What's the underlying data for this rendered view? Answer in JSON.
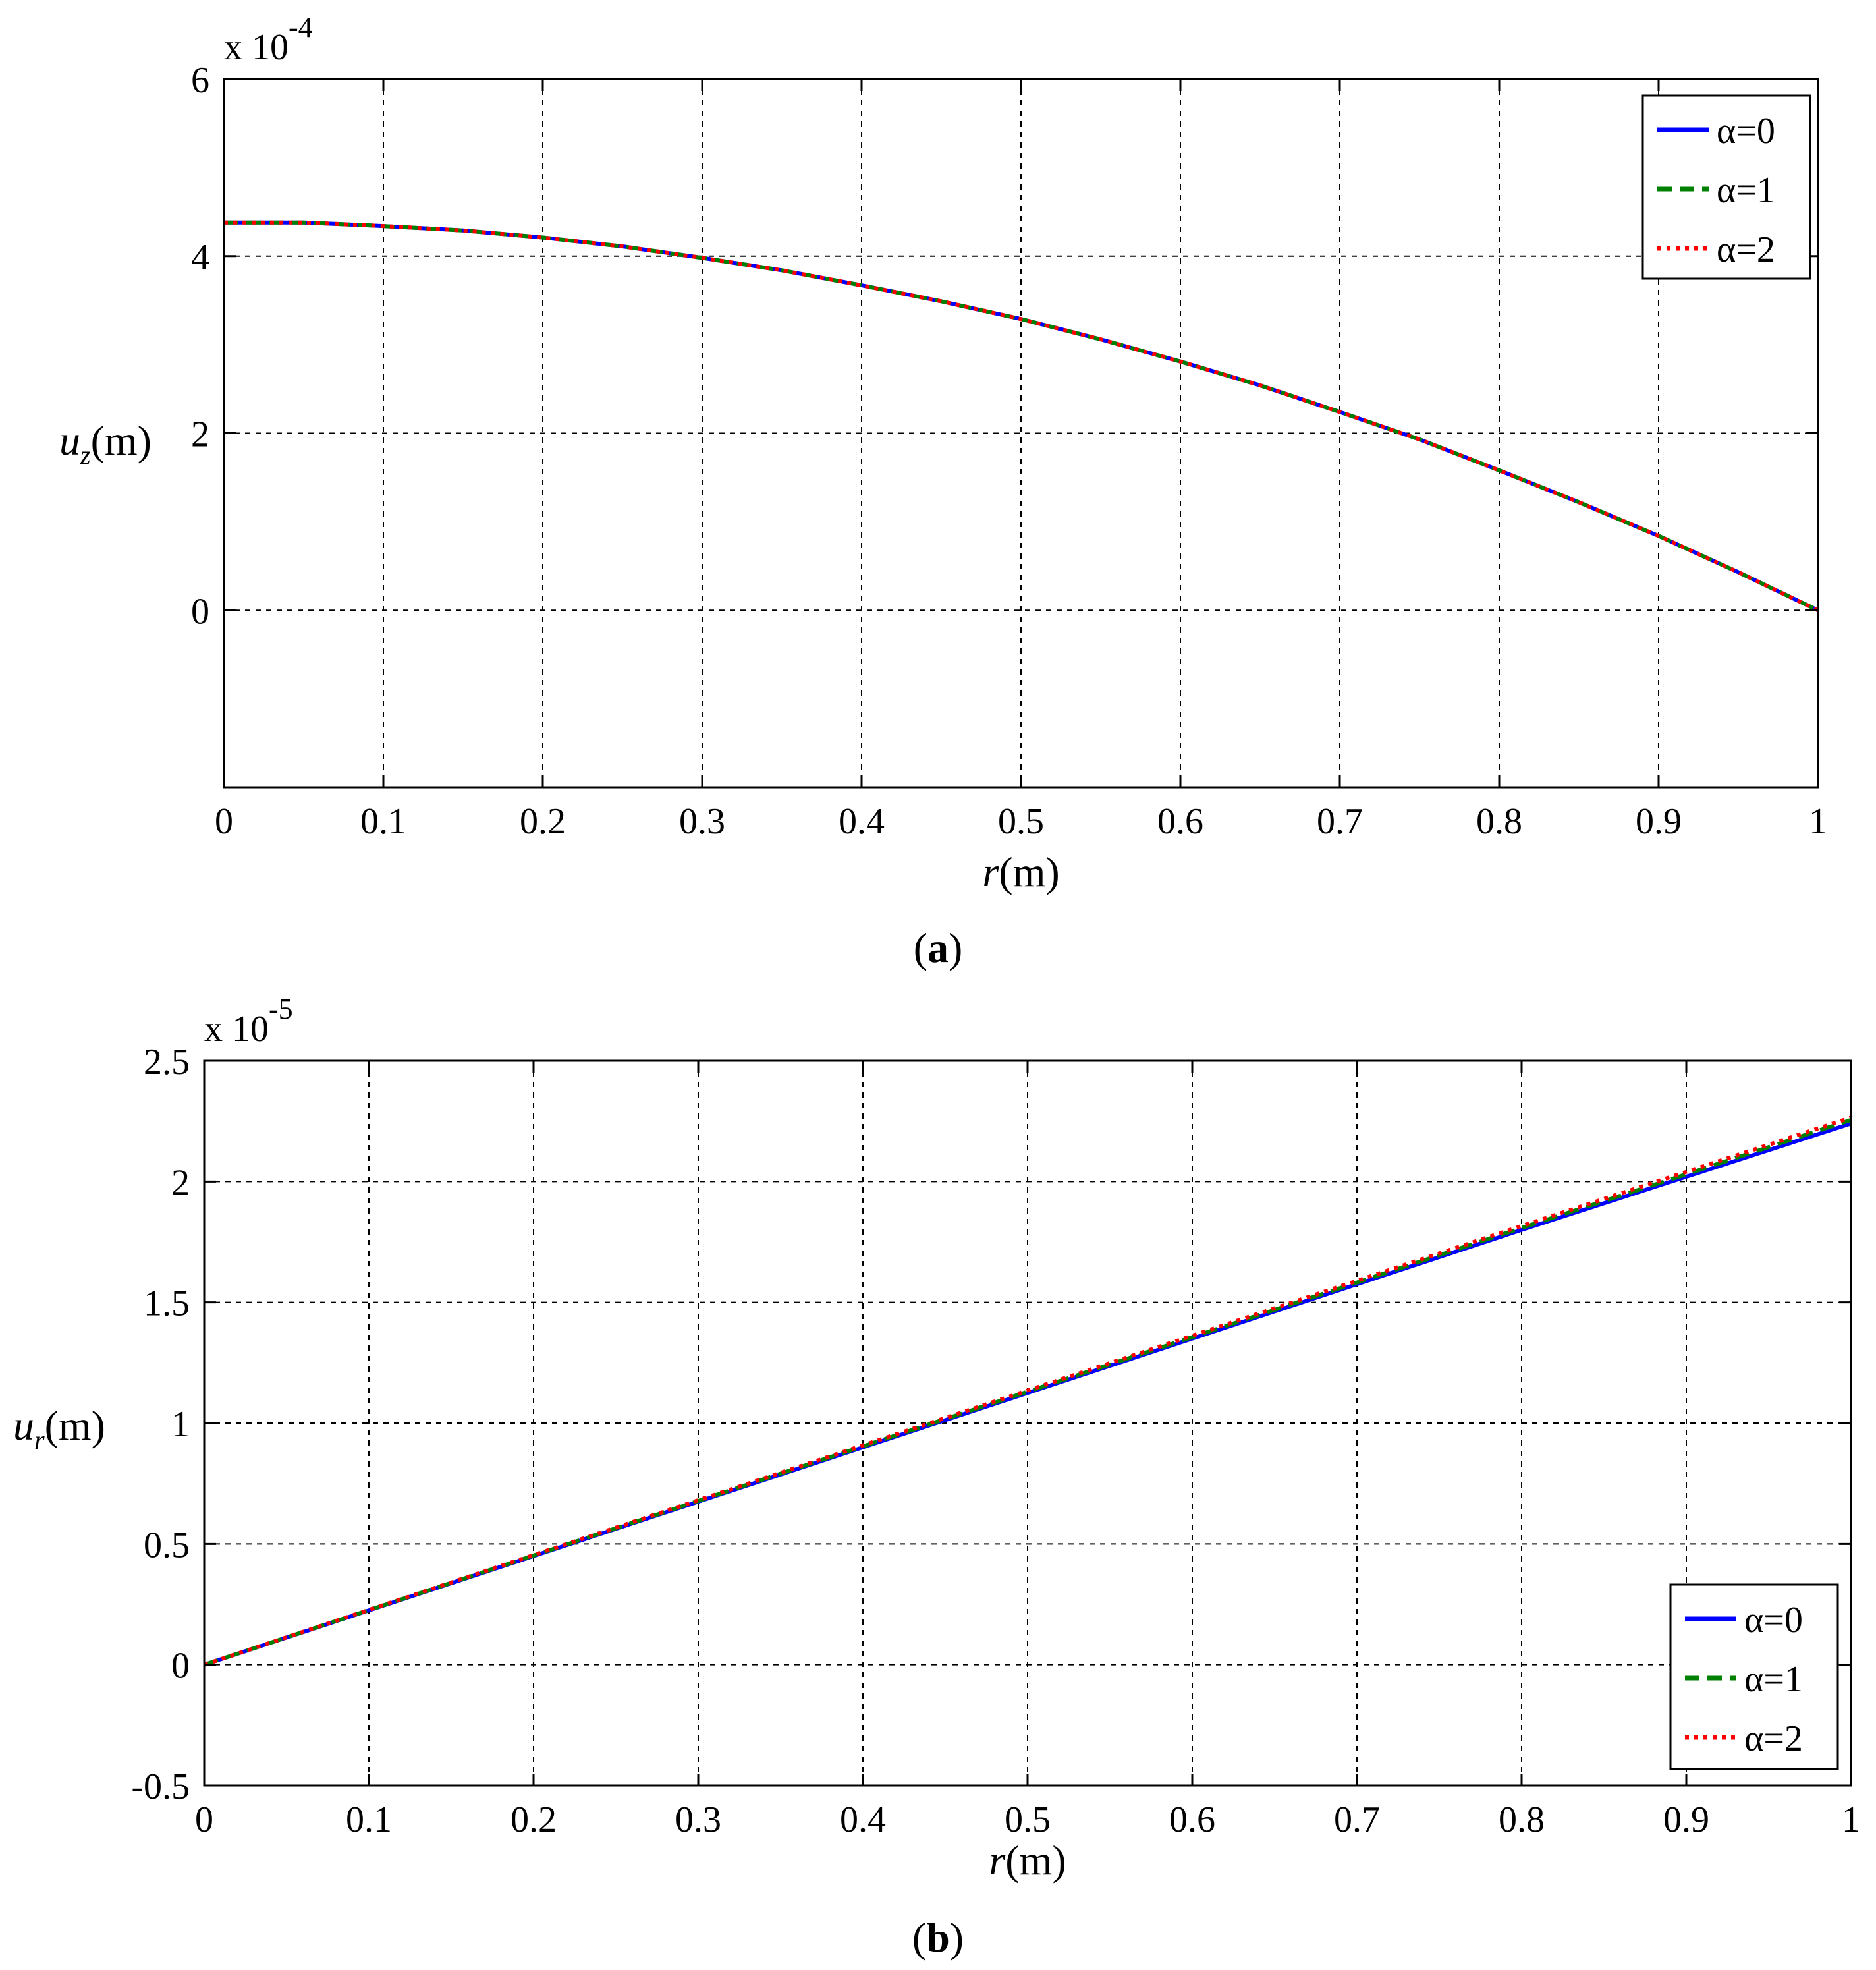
{
  "chart_data": [
    {
      "type": "line",
      "panel_label": "a",
      "xlabel_symbol": "r",
      "xlabel_unit": "(m)",
      "ylabel_symbol": "u",
      "ylabel_subscript": "z",
      "ylabel_unit": "(m)",
      "y_multiplier_prefix": "x 10",
      "y_multiplier_exponent": "-4",
      "xlim": [
        0,
        1
      ],
      "ylim": [
        -2,
        6
      ],
      "x_ticks": [
        0,
        0.1,
        0.2,
        0.3,
        0.4,
        0.5,
        0.6,
        0.7,
        0.8,
        0.9,
        1
      ],
      "x_tick_labels": [
        "0",
        "0.1",
        "0.2",
        "0.3",
        "0.4",
        "0.5",
        "0.6",
        "0.7",
        "0.8",
        "0.9",
        "1"
      ],
      "y_ticks": [
        0,
        2,
        4,
        6
      ],
      "y_tick_labels": [
        "0",
        "2",
        "4",
        "6"
      ],
      "grid": true,
      "legend_position": "top-right",
      "x": [
        0,
        0.05,
        0.1,
        0.15,
        0.2,
        0.25,
        0.3,
        0.35,
        0.4,
        0.45,
        0.5,
        0.55,
        0.6,
        0.65,
        0.7,
        0.75,
        0.8,
        0.85,
        0.9,
        0.95,
        1
      ],
      "series": [
        {
          "name": "α=0",
          "color": "#0000ff",
          "dash": "solid",
          "values": [
            4.38,
            4.38,
            4.34,
            4.29,
            4.21,
            4.11,
            3.98,
            3.84,
            3.67,
            3.49,
            3.29,
            3.06,
            2.81,
            2.54,
            2.24,
            1.93,
            1.58,
            1.22,
            0.84,
            0.43,
            0.0
          ]
        },
        {
          "name": "α=1",
          "color": "#008000",
          "dash": "dashed",
          "values": [
            4.38,
            4.38,
            4.34,
            4.29,
            4.21,
            4.11,
            3.98,
            3.84,
            3.67,
            3.49,
            3.29,
            3.06,
            2.81,
            2.54,
            2.24,
            1.93,
            1.58,
            1.22,
            0.84,
            0.43,
            0.0
          ]
        },
        {
          "name": "α=2",
          "color": "#ff0000",
          "dash": "dotted",
          "values": [
            4.38,
            4.38,
            4.34,
            4.29,
            4.21,
            4.11,
            3.98,
            3.84,
            3.67,
            3.49,
            3.29,
            3.06,
            2.81,
            2.54,
            2.24,
            1.93,
            1.58,
            1.22,
            0.84,
            0.43,
            0.0
          ]
        }
      ]
    },
    {
      "type": "line",
      "panel_label": "b",
      "xlabel_symbol": "r",
      "xlabel_unit": "(m)",
      "ylabel_symbol": "u",
      "ylabel_subscript": "r",
      "ylabel_unit": "(m)",
      "y_multiplier_prefix": "x 10",
      "y_multiplier_exponent": "-5",
      "xlim": [
        0,
        1
      ],
      "ylim": [
        -0.5,
        2.5
      ],
      "x_ticks": [
        0,
        0.1,
        0.2,
        0.3,
        0.4,
        0.5,
        0.6,
        0.7,
        0.8,
        0.9,
        1
      ],
      "x_tick_labels": [
        "0",
        "0.1",
        "0.2",
        "0.3",
        "0.4",
        "0.5",
        "0.6",
        "0.7",
        "0.8",
        "0.9",
        "1"
      ],
      "y_ticks": [
        -0.5,
        0,
        0.5,
        1,
        1.5,
        2,
        2.5
      ],
      "y_tick_labels": [
        "-0.5",
        "0",
        "0.5",
        "1",
        "1.5",
        "2",
        "2.5"
      ],
      "grid": true,
      "legend_position": "bottom-right",
      "x": [
        0,
        0.1,
        0.2,
        0.3,
        0.4,
        0.5,
        0.6,
        0.7,
        0.8,
        0.9,
        1
      ],
      "series": [
        {
          "name": "α=0",
          "color": "#0000ff",
          "dash": "solid",
          "values": [
            0.0,
            0.225,
            0.45,
            0.675,
            0.9,
            1.125,
            1.35,
            1.575,
            1.8,
            2.02,
            2.24
          ]
        },
        {
          "name": "α=1",
          "color": "#008000",
          "dash": "dashed",
          "values": [
            0.0,
            0.226,
            0.452,
            0.678,
            0.904,
            1.13,
            1.356,
            1.582,
            1.808,
            2.03,
            2.255
          ]
        },
        {
          "name": "α=2",
          "color": "#ff0000",
          "dash": "dotted",
          "values": [
            0.0,
            0.227,
            0.454,
            0.681,
            0.908,
            1.135,
            1.362,
            1.589,
            1.816,
            2.04,
            2.265
          ]
        }
      ]
    }
  ]
}
